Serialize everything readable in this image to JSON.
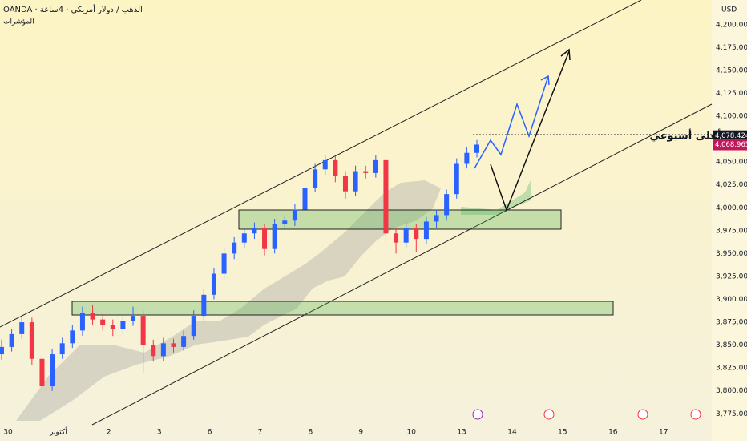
{
  "chart_data": {
    "type": "candlestick",
    "title": "OANDA · الذهب / دولار أمريكي · 4ساعة",
    "subtitle": "المؤشرات",
    "currency": "USD",
    "annotation": "أعلى أسبوعي",
    "categories": [
      "30",
      "أكتوبر",
      "2",
      "3",
      "6",
      "7",
      "8",
      "9",
      "10",
      "13",
      "14",
      "15",
      "16",
      "17"
    ],
    "ylim": [
      3763,
      4227
    ],
    "yticks": [
      {
        "value": 3775,
        "label": "3,775.000"
      },
      {
        "value": 3800,
        "label": "3,800.000"
      },
      {
        "value": 3825,
        "label": "3,825.000"
      },
      {
        "value": 3850,
        "label": "3,850.000"
      },
      {
        "value": 3875,
        "label": "3,875.000"
      },
      {
        "value": 3900,
        "label": "3,900.000"
      },
      {
        "value": 3925,
        "label": "3,925.000"
      },
      {
        "value": 3950,
        "label": "3,950.000"
      },
      {
        "value": 3975,
        "label": "3,975.000"
      },
      {
        "value": 4000,
        "label": "4,000.000"
      },
      {
        "value": 4025,
        "label": "4,025.000"
      },
      {
        "value": 4050,
        "label": "4,050.000"
      },
      {
        "value": 4075,
        "label": "4,075.000"
      },
      {
        "value": 4100,
        "label": "4,100.000"
      },
      {
        "value": 4125,
        "label": "4,125.000"
      },
      {
        "value": 4150,
        "label": "4,150.000"
      },
      {
        "value": 4175,
        "label": "4,175.000"
      },
      {
        "value": 4200,
        "label": "4,200.000"
      }
    ],
    "price_marks": [
      {
        "value": 4078.424,
        "label": "4,078.424",
        "color": "#131722"
      },
      {
        "value": 4068.965,
        "label": "4,068.965",
        "color": "#c2185b"
      }
    ],
    "up_color": "#2962ff",
    "down_color": "#f23645",
    "open": [
      3840,
      3848,
      3862,
      3875,
      3835,
      3805,
      3840,
      3852,
      3866,
      3885,
      3878,
      3872,
      3868,
      3876,
      3882,
      3850,
      3838,
      3852,
      3848,
      3860,
      3882,
      3905,
      3928,
      3950,
      3962,
      3972,
      3978,
      3955,
      3982,
      3986,
      3998,
      4022,
      4042,
      4052,
      4035,
      4018,
      4040,
      4038,
      4052,
      3972,
      3962,
      3978,
      3966,
      3985,
      3992,
      4015,
      4048,
      4060
    ],
    "high": [
      3856,
      3868,
      3882,
      3880,
      3840,
      3846,
      3858,
      3872,
      3892,
      3894,
      3884,
      3878,
      3882,
      3892,
      3888,
      3856,
      3858,
      3857,
      3866,
      3888,
      3911,
      3934,
      3956,
      3968,
      3978,
      3984,
      3982,
      3988,
      3992,
      4004,
      4028,
      4048,
      4058,
      4056,
      4040,
      4046,
      4046,
      4058,
      4056,
      3978,
      3984,
      3982,
      3990,
      3998,
      4020,
      4054,
      4066,
      4074
    ],
    "low": [
      3834,
      3843,
      3857,
      3828,
      3795,
      3800,
      3835,
      3847,
      3860,
      3872,
      3866,
      3860,
      3862,
      3871,
      3820,
      3832,
      3833,
      3842,
      3844,
      3856,
      3877,
      3900,
      3922,
      3944,
      3956,
      3966,
      3948,
      3950,
      3976,
      3980,
      3993,
      4017,
      4036,
      4028,
      4010,
      4013,
      4032,
      4033,
      3962,
      3950,
      3956,
      3952,
      3960,
      3978,
      3986,
      4010,
      4043,
      4055
    ],
    "close": [
      3848,
      3862,
      3875,
      3835,
      3805,
      3840,
      3852,
      3866,
      3885,
      3878,
      3872,
      3868,
      3876,
      3882,
      3850,
      3838,
      3852,
      3848,
      3860,
      3882,
      3905,
      3928,
      3950,
      3962,
      3972,
      3978,
      3955,
      3982,
      3986,
      3998,
      4022,
      4042,
      4052,
      4035,
      4018,
      4040,
      4038,
      4052,
      3972,
      3962,
      3978,
      3966,
      3985,
      3992,
      4015,
      4048,
      4060,
      4069
    ]
  }
}
